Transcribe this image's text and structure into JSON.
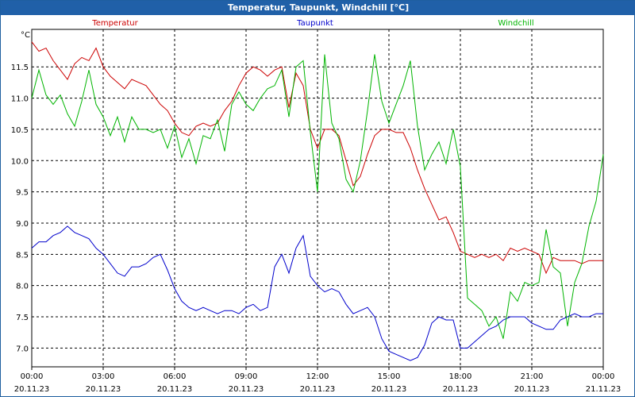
{
  "window": {
    "title": "Temperatur, Taupunkt, Windchill [°C]"
  },
  "chart_data": {
    "type": "line",
    "title": "Temperatur, Taupunkt, Windchill [°C]",
    "ylabel": "°C",
    "xlabel": "",
    "ylim": [
      6.7,
      12.1
    ],
    "xlim_hours": [
      0,
      24
    ],
    "grid": true,
    "y_ticks": [
      "11.5",
      "11.0",
      "10.5",
      "10.0",
      "9.5",
      "9.0",
      "8.5",
      "8.0",
      "7.5",
      "7.0"
    ],
    "y_tick_values": [
      11.5,
      11.0,
      10.5,
      10.0,
      9.5,
      9.0,
      8.5,
      8.0,
      7.5,
      7.0
    ],
    "x_ticks": [
      {
        "time": "00:00",
        "date": "20.11.23"
      },
      {
        "time": "03:00",
        "date": "20.11.23"
      },
      {
        "time": "06:00",
        "date": "20.11.23"
      },
      {
        "time": "09:00",
        "date": "20.11.23"
      },
      {
        "time": "12:00",
        "date": "20.11.23"
      },
      {
        "time": "15:00",
        "date": "20.11.23"
      },
      {
        "time": "18:00",
        "date": "20.11.23"
      },
      {
        "time": "21:00",
        "date": "20.11.23"
      },
      {
        "time": "00:00",
        "date": "21.11.23"
      }
    ],
    "series": [
      {
        "name": "Temperatur",
        "color": "#cc0000",
        "x": [
          0,
          0.3,
          0.6,
          0.9,
          1.2,
          1.5,
          1.8,
          2.1,
          2.4,
          2.7,
          3.0,
          3.3,
          3.6,
          3.9,
          4.2,
          4.5,
          4.8,
          5.1,
          5.4,
          5.7,
          6.0,
          6.3,
          6.6,
          6.9,
          7.2,
          7.5,
          7.8,
          8.1,
          8.4,
          8.7,
          9.0,
          9.3,
          9.6,
          9.9,
          10.2,
          10.5,
          10.8,
          11.1,
          11.4,
          11.7,
          12.0,
          12.3,
          12.6,
          12.9,
          13.2,
          13.5,
          13.8,
          14.1,
          14.4,
          14.7,
          15.0,
          15.3,
          15.6,
          15.9,
          16.2,
          16.5,
          16.8,
          17.1,
          17.4,
          17.7,
          18.0,
          18.3,
          18.6,
          18.9,
          19.2,
          19.5,
          19.8,
          20.1,
          20.4,
          20.7,
          21.0,
          21.3,
          21.6,
          21.9,
          22.2,
          22.5,
          22.8,
          23.1,
          23.4,
          23.7,
          24.0
        ],
        "values": [
          11.9,
          11.75,
          11.8,
          11.6,
          11.45,
          11.3,
          11.55,
          11.65,
          11.6,
          11.8,
          11.5,
          11.35,
          11.25,
          11.15,
          11.3,
          11.25,
          11.2,
          11.05,
          10.9,
          10.8,
          10.6,
          10.45,
          10.4,
          10.55,
          10.6,
          10.55,
          10.6,
          10.8,
          10.95,
          11.2,
          11.4,
          11.5,
          11.45,
          11.35,
          11.45,
          11.5,
          10.85,
          11.4,
          11.2,
          10.5,
          10.2,
          10.5,
          10.5,
          10.4,
          10.0,
          9.6,
          9.75,
          10.1,
          10.4,
          10.5,
          10.5,
          10.45,
          10.45,
          10.2,
          9.85,
          9.55,
          9.3,
          9.05,
          9.1,
          8.85,
          8.55,
          8.5,
          8.45,
          8.5,
          8.45,
          8.5,
          8.4,
          8.6,
          8.55,
          8.6,
          8.55,
          8.5,
          8.2,
          8.45,
          8.4,
          8.4,
          8.4,
          8.35,
          8.4,
          8.4,
          8.4
        ]
      },
      {
        "name": "Taupunkt",
        "color": "#0000cc",
        "x": [
          0,
          0.3,
          0.6,
          0.9,
          1.2,
          1.5,
          1.8,
          2.1,
          2.4,
          2.7,
          3.0,
          3.3,
          3.6,
          3.9,
          4.2,
          4.5,
          4.8,
          5.1,
          5.4,
          5.7,
          6.0,
          6.3,
          6.6,
          6.9,
          7.2,
          7.5,
          7.8,
          8.1,
          8.4,
          8.7,
          9.0,
          9.3,
          9.6,
          9.9,
          10.2,
          10.5,
          10.8,
          11.1,
          11.4,
          11.7,
          12.0,
          12.3,
          12.6,
          12.9,
          13.2,
          13.5,
          13.8,
          14.1,
          14.4,
          14.7,
          15.0,
          15.3,
          15.6,
          15.9,
          16.2,
          16.5,
          16.8,
          17.1,
          17.4,
          17.7,
          18.0,
          18.3,
          18.6,
          18.9,
          19.2,
          19.5,
          19.8,
          20.1,
          20.4,
          20.7,
          21.0,
          21.3,
          21.6,
          21.9,
          22.2,
          22.5,
          22.8,
          23.1,
          23.4,
          23.7,
          24.0
        ],
        "values": [
          8.6,
          8.7,
          8.7,
          8.8,
          8.85,
          8.95,
          8.85,
          8.8,
          8.75,
          8.6,
          8.5,
          8.35,
          8.2,
          8.15,
          8.3,
          8.3,
          8.35,
          8.45,
          8.5,
          8.25,
          7.95,
          7.75,
          7.65,
          7.6,
          7.65,
          7.6,
          7.55,
          7.6,
          7.6,
          7.55,
          7.65,
          7.7,
          7.6,
          7.65,
          8.3,
          8.5,
          8.2,
          8.6,
          8.8,
          8.15,
          8.0,
          7.9,
          7.95,
          7.9,
          7.7,
          7.55,
          7.6,
          7.65,
          7.5,
          7.15,
          6.95,
          6.9,
          6.85,
          6.8,
          6.85,
          7.05,
          7.4,
          7.5,
          7.45,
          7.45,
          7.0,
          7.0,
          7.1,
          7.2,
          7.3,
          7.35,
          7.45,
          7.5,
          7.5,
          7.5,
          7.4,
          7.35,
          7.3,
          7.3,
          7.45,
          7.5,
          7.55,
          7.5,
          7.5,
          7.55,
          7.55
        ]
      },
      {
        "name": "Windchill",
        "color": "#00b400",
        "x": [
          0,
          0.3,
          0.6,
          0.9,
          1.2,
          1.5,
          1.8,
          2.1,
          2.4,
          2.7,
          3.0,
          3.3,
          3.6,
          3.9,
          4.2,
          4.5,
          4.8,
          5.1,
          5.4,
          5.7,
          6.0,
          6.3,
          6.6,
          6.9,
          7.2,
          7.5,
          7.8,
          8.1,
          8.4,
          8.7,
          9.0,
          9.3,
          9.6,
          9.9,
          10.2,
          10.5,
          10.8,
          11.1,
          11.4,
          11.7,
          12.0,
          12.3,
          12.6,
          12.9,
          13.2,
          13.5,
          13.8,
          14.1,
          14.4,
          14.7,
          15.0,
          15.3,
          15.6,
          15.9,
          16.2,
          16.5,
          16.8,
          17.1,
          17.4,
          17.7,
          18.0,
          18.3,
          18.6,
          18.9,
          19.2,
          19.5,
          19.8,
          20.1,
          20.4,
          20.7,
          21.0,
          21.3,
          21.6,
          21.9,
          22.2,
          22.5,
          22.8,
          23.1,
          23.4,
          23.7,
          24.0
        ],
        "values": [
          11.0,
          11.45,
          11.05,
          10.9,
          11.05,
          10.75,
          10.55,
          10.95,
          11.45,
          10.9,
          10.7,
          10.4,
          10.7,
          10.3,
          10.7,
          10.5,
          10.5,
          10.45,
          10.5,
          10.2,
          10.55,
          10.05,
          10.35,
          9.95,
          10.4,
          10.35,
          10.65,
          10.15,
          10.9,
          11.1,
          10.9,
          10.8,
          11.0,
          11.15,
          11.2,
          11.45,
          10.7,
          11.5,
          11.6,
          10.45,
          9.5,
          11.7,
          10.6,
          10.35,
          9.7,
          9.5,
          10.0,
          10.8,
          11.7,
          10.95,
          10.6,
          10.9,
          11.2,
          11.6,
          10.55,
          9.85,
          10.1,
          10.3,
          9.95,
          10.5,
          9.9,
          7.8,
          7.7,
          7.6,
          7.35,
          7.5,
          7.15,
          7.9,
          7.75,
          8.05,
          8.0,
          8.05,
          8.9,
          8.3,
          8.2,
          7.35,
          8.05,
          8.35,
          8.95,
          9.35,
          10.1
        ]
      }
    ]
  }
}
